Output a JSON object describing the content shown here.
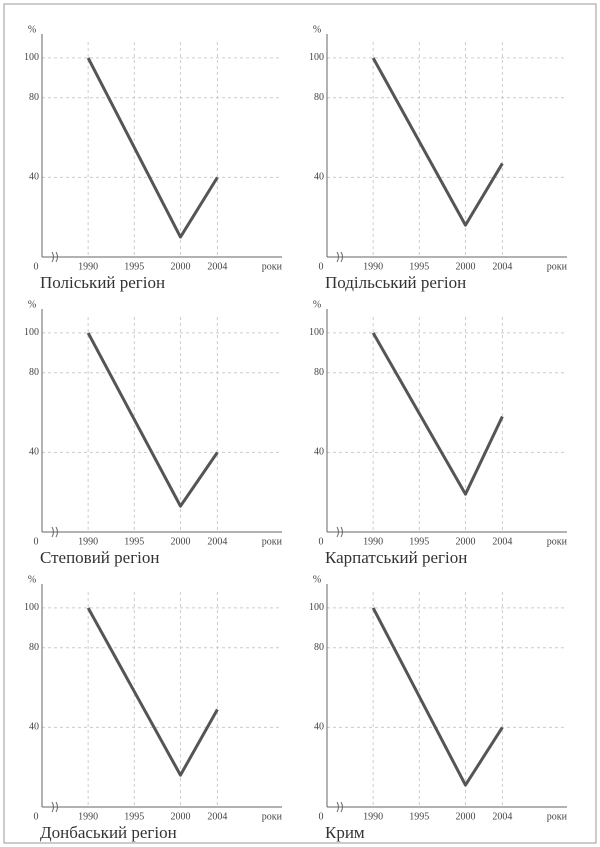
{
  "chart_data": [
    {
      "type": "line",
      "title": "Поліський регіон",
      "y_label": "%",
      "x_label": "роки",
      "origin_label": "0",
      "x": [
        1990,
        2000,
        2004
      ],
      "values": [
        100,
        10,
        40
      ],
      "color": "#555555",
      "xlim": [
        1985,
        2011
      ],
      "xticks": [
        1990,
        1995,
        2000,
        2004
      ],
      "ylim": [
        0,
        108
      ],
      "yticks": [
        40,
        80,
        100
      ],
      "grid": true
    },
    {
      "type": "line",
      "title": "Подільський регіон",
      "y_label": "%",
      "x_label": "роки",
      "origin_label": "0",
      "x": [
        1990,
        2000,
        2004
      ],
      "values": [
        100,
        16,
        47
      ],
      "color": "#555555",
      "xlim": [
        1985,
        2011
      ],
      "xticks": [
        1990,
        1995,
        2000,
        2004
      ],
      "ylim": [
        0,
        108
      ],
      "yticks": [
        40,
        80,
        100
      ],
      "grid": true
    },
    {
      "type": "line",
      "title": "Степовий регіон",
      "y_label": "%",
      "x_label": "роки",
      "origin_label": "0",
      "x": [
        1990,
        2000,
        2004
      ],
      "values": [
        100,
        13,
        40
      ],
      "color": "#555555",
      "xlim": [
        1985,
        2011
      ],
      "xticks": [
        1990,
        1995,
        2000,
        2004
      ],
      "ylim": [
        0,
        108
      ],
      "yticks": [
        40,
        80,
        100
      ],
      "grid": true
    },
    {
      "type": "line",
      "title": "Карпатський регіон",
      "y_label": "%",
      "x_label": "роки",
      "origin_label": "0",
      "x": [
        1990,
        2000,
        2004
      ],
      "values": [
        100,
        19,
        58
      ],
      "color": "#555555",
      "xlim": [
        1985,
        2011
      ],
      "xticks": [
        1990,
        1995,
        2000,
        2004
      ],
      "ylim": [
        0,
        108
      ],
      "yticks": [
        40,
        80,
        100
      ],
      "grid": true
    },
    {
      "type": "line",
      "title": "Донбаський регіон",
      "y_label": "%",
      "x_label": "роки",
      "origin_label": "0",
      "x": [
        1990,
        2000,
        2004
      ],
      "values": [
        100,
        16,
        49
      ],
      "color": "#555555",
      "xlim": [
        1985,
        2011
      ],
      "xticks": [
        1990,
        1995,
        2000,
        2004
      ],
      "ylim": [
        0,
        108
      ],
      "yticks": [
        40,
        80,
        100
      ],
      "grid": true
    },
    {
      "type": "line",
      "title": "Крим",
      "y_label": "%",
      "x_label": "роки",
      "origin_label": "0",
      "x": [
        1990,
        2000,
        2004
      ],
      "values": [
        100,
        11,
        40
      ],
      "color": "#555555",
      "xlim": [
        1985,
        2011
      ],
      "xticks": [
        1990,
        1995,
        2000,
        2004
      ],
      "ylim": [
        0,
        108
      ],
      "yticks": [
        40,
        80,
        100
      ],
      "grid": true
    }
  ]
}
